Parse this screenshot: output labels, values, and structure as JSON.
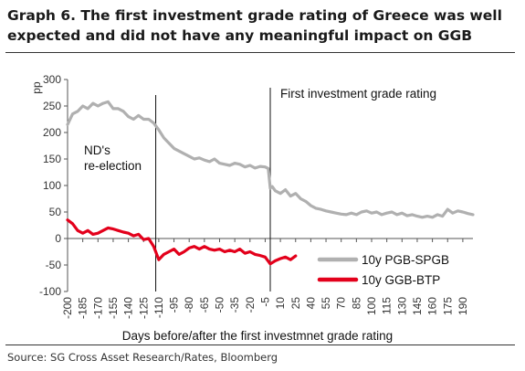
{
  "title": "Graph 6. The first investment grade rating of Greece was well expected and did not have any meaningful impact on GGB",
  "source": "Source: SG Cross Asset Research/Rates, Bloomberg",
  "chart_data": {
    "type": "line",
    "xlabel": "Days before/after the first investmnet grade rating",
    "ylabel": "pp",
    "xlim": [
      -200,
      200
    ],
    "ylim": [
      -100,
      300
    ],
    "x_ticks": [
      -200,
      -185,
      -170,
      -155,
      -140,
      -125,
      -110,
      -95,
      -80,
      -65,
      -50,
      -35,
      -20,
      -5,
      10,
      25,
      40,
      55,
      70,
      85,
      100,
      115,
      130,
      145,
      160,
      175,
      190
    ],
    "y_ticks": [
      -100,
      -50,
      0,
      50,
      100,
      150,
      200,
      250,
      300
    ],
    "legend_position": "bottom-right",
    "grid": false,
    "annotations": [
      {
        "text_lines": [
          "ND's",
          "re-election"
        ],
        "x": -113
      },
      {
        "text": "First investment grade rating",
        "x": 0
      }
    ],
    "series": [
      {
        "name": "10y PGB-SPGB",
        "color": "#b0b0b0",
        "x": [
          -200,
          -195,
          -190,
          -185,
          -180,
          -175,
          -170,
          -165,
          -160,
          -155,
          -150,
          -145,
          -140,
          -135,
          -130,
          -125,
          -120,
          -115,
          -110,
          -105,
          -100,
          -95,
          -90,
          -85,
          -80,
          -75,
          -70,
          -65,
          -60,
          -55,
          -50,
          -45,
          -40,
          -35,
          -30,
          -25,
          -20,
          -15,
          -10,
          -5,
          -2,
          0,
          2,
          5,
          10,
          15,
          20,
          25,
          30,
          35,
          40,
          45,
          50,
          55,
          60,
          65,
          70,
          75,
          80,
          85,
          90,
          95,
          100,
          105,
          110,
          115,
          120,
          125,
          130,
          135,
          140,
          145,
          150,
          155,
          160,
          165,
          170,
          175,
          180,
          185,
          190,
          195,
          200
        ],
        "values": [
          215,
          235,
          240,
          250,
          245,
          255,
          250,
          255,
          258,
          245,
          245,
          240,
          230,
          225,
          232,
          225,
          225,
          218,
          205,
          190,
          180,
          170,
          165,
          160,
          155,
          150,
          152,
          148,
          145,
          150,
          142,
          140,
          138,
          142,
          140,
          135,
          138,
          133,
          136,
          135,
          132,
          95,
          98,
          90,
          85,
          92,
          80,
          85,
          75,
          70,
          62,
          57,
          55,
          52,
          50,
          48,
          46,
          45,
          48,
          45,
          50,
          52,
          48,
          50,
          45,
          48,
          50,
          45,
          48,
          43,
          45,
          42,
          40,
          42,
          40,
          45,
          42,
          55,
          48,
          52,
          50,
          47,
          45
        ]
      },
      {
        "name": "10y GGB-BTP",
        "color": "#e3001b",
        "x": [
          -200,
          -195,
          -190,
          -185,
          -180,
          -175,
          -170,
          -165,
          -160,
          -155,
          -150,
          -145,
          -140,
          -135,
          -130,
          -125,
          -120,
          -115,
          -112,
          -110,
          -105,
          -100,
          -95,
          -90,
          -85,
          -80,
          -75,
          -70,
          -65,
          -60,
          -55,
          -50,
          -45,
          -40,
          -35,
          -30,
          -25,
          -20,
          -15,
          -10,
          -5,
          0,
          5,
          10,
          15,
          20,
          25
        ],
        "values": [
          35,
          28,
          15,
          10,
          15,
          8,
          10,
          15,
          20,
          18,
          15,
          12,
          10,
          5,
          8,
          -2,
          0,
          -15,
          -30,
          -40,
          -30,
          -25,
          -20,
          -30,
          -25,
          -18,
          -15,
          -20,
          -15,
          -20,
          -22,
          -20,
          -25,
          -22,
          -25,
          -20,
          -28,
          -25,
          -30,
          -32,
          -35,
          -48,
          -42,
          -38,
          -35,
          -40,
          -33
        ]
      }
    ]
  }
}
